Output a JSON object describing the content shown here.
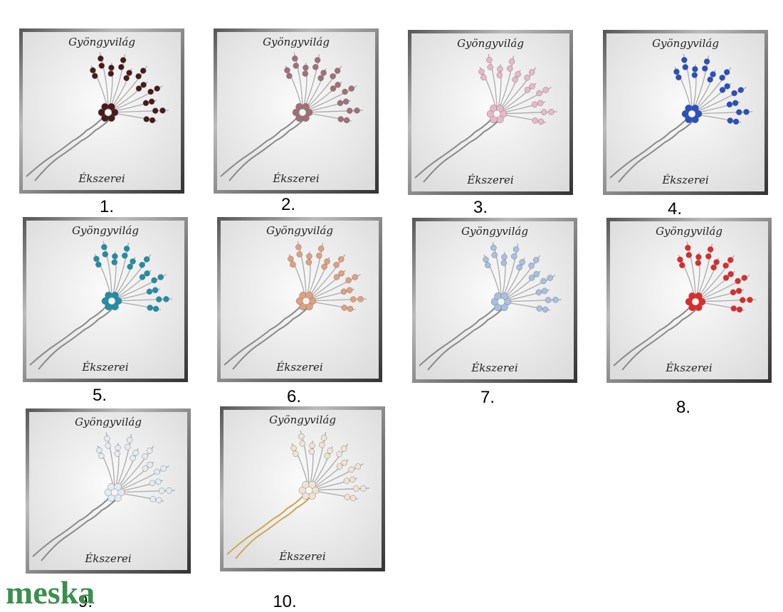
{
  "items": [
    {
      "brand_top": "Gyöngyvilág",
      "brand_bottom": "Ékszerei",
      "label": "1."
    },
    {
      "brand_top": "Gyöngyvilág",
      "brand_bottom": "Ékszerei",
      "label": "2."
    },
    {
      "brand_top": "Gyöngyvilág",
      "brand_bottom": "Ékszerei",
      "label": "3."
    },
    {
      "brand_top": "Gyöngyvilág",
      "brand_bottom": "Ékszerei",
      "label": "4."
    },
    {
      "brand_top": "Gyöngyvilág",
      "brand_bottom": "Ékszerei",
      "label": "5."
    },
    {
      "brand_top": "Gyöngyvilág",
      "brand_bottom": "Ékszerei",
      "label": "6."
    },
    {
      "brand_top": "Gyöngyvilág",
      "brand_bottom": "Ékszerei",
      "label": "7."
    },
    {
      "brand_top": "Gyöngyvilág",
      "brand_bottom": "Ékszerei",
      "label": "8."
    },
    {
      "brand_top": "Gyöngyvilág",
      "brand_bottom": "Ékszerei",
      "label": "9."
    },
    {
      "brand_top": "Gyöngyvilág",
      "brand_bottom": "Ékszerei",
      "label": "10."
    }
  ],
  "logo": "meska"
}
